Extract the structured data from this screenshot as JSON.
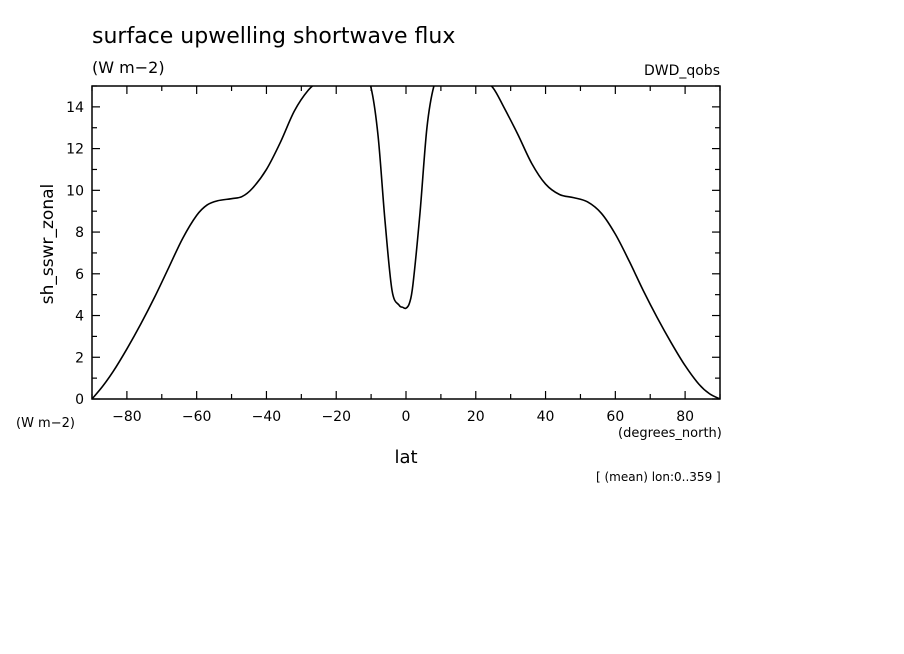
{
  "chart_data": {
    "type": "line",
    "title": "surface upwelling shortwave flux",
    "units": "(W m−2)",
    "dataset": "DWD_qobs",
    "xlabel": "lat",
    "x_units": "(degrees_north)",
    "ylabel": "sh_sswr_zonal",
    "y_units": "(W m−2)",
    "footnote": "[ (mean) lon:0..359 ]",
    "xlim": [
      -90,
      90
    ],
    "ylim": [
      0,
      15
    ],
    "x_ticks": [
      -80,
      -60,
      -40,
      -20,
      0,
      20,
      40,
      60,
      80
    ],
    "y_ticks": [
      0,
      2,
      4,
      6,
      8,
      10,
      12,
      14
    ],
    "grid": false,
    "series": [
      {
        "x": [
          -90,
          -87,
          -84,
          -80,
          -76,
          -72,
          -68,
          -64,
          -60,
          -57,
          -54,
          -50,
          -47,
          -44,
          -40,
          -36,
          -32,
          -28,
          -25,
          -22,
          -18,
          -15,
          -12,
          -10,
          -8,
          -6,
          -4,
          -2,
          -1,
          0,
          1,
          2,
          4,
          6,
          8,
          10,
          12,
          14,
          16,
          19,
          22,
          25,
          28,
          32,
          36,
          40,
          44,
          48,
          52,
          56,
          60,
          64,
          68,
          72,
          76,
          80,
          84,
          87,
          90
        ],
        "y": [
          0.0,
          0.6,
          1.3,
          2.4,
          3.6,
          4.9,
          6.3,
          7.7,
          8.8,
          9.3,
          9.5,
          9.6,
          9.7,
          10.1,
          11.0,
          12.3,
          13.8,
          14.8,
          15.2,
          15.35,
          15.5,
          15.6,
          15.5,
          14.9,
          12.6,
          8.5,
          5.2,
          4.5,
          4.4,
          4.35,
          4.6,
          5.5,
          8.9,
          13.0,
          15.0,
          15.55,
          15.6,
          15.65,
          15.6,
          15.5,
          15.3,
          14.9,
          14.0,
          12.7,
          11.3,
          10.3,
          9.8,
          9.65,
          9.45,
          8.9,
          7.9,
          6.6,
          5.2,
          3.9,
          2.7,
          1.6,
          0.7,
          0.25,
          0.0
        ]
      }
    ]
  }
}
